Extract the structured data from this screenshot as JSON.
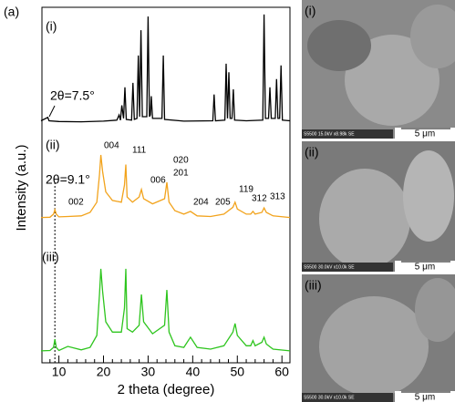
{
  "chart_data": {
    "type": "line",
    "panel_label": "(a)",
    "x_label": "2 theta (degree)",
    "y_label": "Intensity (a.u.)",
    "xlim": [
      6.2,
      61.8
    ],
    "xticks": [
      10,
      20,
      30,
      40,
      50,
      60
    ],
    "xminorticks": [
      8,
      12,
      14,
      16,
      18,
      22,
      24,
      26,
      28,
      32,
      34,
      36,
      38,
      42,
      44,
      46,
      48,
      52,
      54,
      56,
      58
    ],
    "ylim": [
      0,
      104
    ],
    "vline": 9.1,
    "series": [
      {
        "name": "(i)",
        "color": "#000000",
        "x": [
          6,
          7.5,
          7.8,
          10,
          15,
          20,
          23,
          23.5,
          23.8,
          24.1,
          24.5,
          24.8,
          25.1,
          26.3,
          26.6,
          26.9,
          27.5,
          27.8,
          28.1,
          28.4,
          28.7,
          29.7,
          30,
          30.3,
          30.5,
          30.7,
          31,
          33.1,
          33.4,
          33.7,
          38,
          44.5,
          44.8,
          45.1,
          47.2,
          47.5,
          47.8,
          48.1,
          48.4,
          48.8,
          49.1,
          49.4,
          52,
          55.7,
          56,
          56.3,
          57,
          57.3,
          57.6,
          58.5,
          58.8,
          59.1,
          59.5,
          59.8,
          60.1,
          61.8
        ],
        "values": [
          70.8,
          71.8,
          70.8,
          70.6,
          70.5,
          70.7,
          71,
          72.5,
          71,
          75.3,
          71.5,
          80.6,
          71.2,
          71,
          81.9,
          71.2,
          71.5,
          89.9,
          72,
          97.3,
          72,
          72,
          101.3,
          72,
          72.5,
          78,
          71.5,
          71.5,
          89.9,
          71.2,
          70.7,
          70.8,
          78.5,
          70.8,
          71,
          87.5,
          71.5,
          85,
          71.5,
          71.5,
          80,
          71,
          70.8,
          71,
          101.9,
          71.5,
          71.5,
          80.6,
          71.5,
          71.5,
          83,
          71.5,
          71.5,
          87,
          71,
          70.8
        ]
      },
      {
        "name": "(ii)",
        "color": "#f2a31c",
        "x": [
          6,
          8,
          8.8,
          9.1,
          9.4,
          10,
          12,
          15,
          17,
          18.5,
          19.1,
          19.4,
          19.8,
          20.5,
          22,
          24,
          24.7,
          25,
          25.3,
          26.5,
          28,
          28.5,
          29,
          31,
          33.7,
          34.2,
          34.7,
          36,
          38,
          39.5,
          41,
          44,
          47,
          49,
          49.5,
          50,
          52,
          53,
          53.5,
          54,
          55.5,
          56,
          56.5,
          58,
          61.8
        ],
        "values": [
          42.5,
          42.6,
          43.5,
          44.8,
          43.5,
          42.7,
          42.8,
          43,
          44,
          47,
          55,
          60.8,
          56,
          50,
          47.5,
          47,
          52,
          58,
          48.5,
          47,
          48.5,
          50.7,
          48,
          46.5,
          48,
          52.8,
          47,
          44.5,
          43.5,
          44.3,
          43,
          42.8,
          43.5,
          45.5,
          47,
          45,
          43.5,
          43.5,
          44.3,
          43.5,
          44,
          45.3,
          44,
          43,
          42.5
        ]
      },
      {
        "name": "(iii)",
        "color": "#2ec51e",
        "x": [
          6,
          8,
          8.8,
          9.1,
          9.4,
          10,
          12,
          15,
          17,
          18.5,
          19.1,
          19.4,
          19.8,
          20.5,
          22,
          24,
          24.7,
          25,
          25.3,
          26.5,
          28,
          28.5,
          29,
          31,
          33.7,
          34.2,
          34.7,
          36,
          38,
          39.5,
          41,
          44,
          47,
          49,
          49.5,
          50,
          52,
          53,
          53.5,
          54,
          55.5,
          56,
          56.5,
          58,
          61.8
        ],
        "values": [
          3.5,
          3.6,
          4.5,
          6.9,
          4.5,
          3.6,
          4.8,
          3.8,
          4.5,
          8,
          20,
          27.5,
          21,
          12,
          9,
          9,
          16,
          27.5,
          10,
          9,
          11,
          20,
          12,
          8.5,
          11,
          21.3,
          9,
          5,
          4.5,
          7.5,
          4.5,
          4,
          5,
          9,
          11.5,
          8,
          5,
          5,
          6.5,
          5,
          6,
          7.5,
          5.5,
          4,
          3.5
        ]
      }
    ],
    "annotations": [
      "2θ=7.5°",
      "2θ=9.1°"
    ],
    "peak_labels": [
      "002",
      "004",
      "111",
      "006",
      "020",
      "201",
      "204",
      "205",
      "119",
      "312",
      "313"
    ]
  },
  "sem_panels": [
    {
      "label": "(i)",
      "info": "S5500 15.0kV x8.98k SE",
      "scale": "5 μm"
    },
    {
      "label": "(ii)",
      "info": "S5500 30.0kV x10.0k SE",
      "scale": "5 μm"
    },
    {
      "label": "(iii)",
      "info": "S5500 30.0kV x10.0k SE",
      "scale": "5 μm"
    }
  ]
}
